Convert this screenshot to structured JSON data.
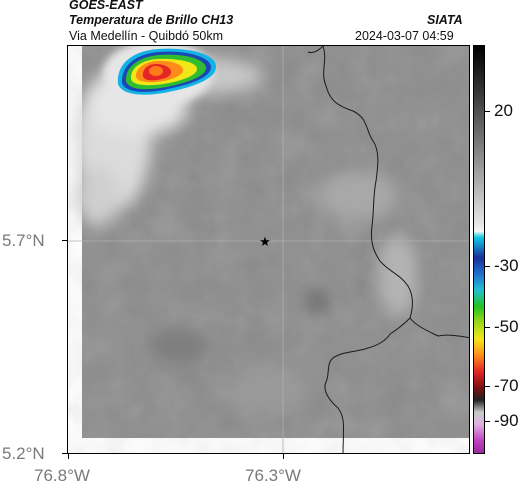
{
  "header": {
    "source": "GOES-EAST",
    "product": "Temperatura de Brillo CH13",
    "region": "Via Medellín - Quibdó 50km",
    "org": "SIATA",
    "datetime": "2024-03-07 04:59"
  },
  "axes": {
    "lat_labels": [
      "5.7°N",
      "5.2°N"
    ],
    "lon_labels": [
      "76.8°W",
      "76.3°W"
    ]
  },
  "marker": {
    "name": "star",
    "lat": 5.7,
    "lon": -76.35
  },
  "colorbar": {
    "labels": [
      "20",
      "-30",
      "-50",
      "-70",
      "-90"
    ],
    "unit_hint": "brightness temperature"
  },
  "colors": {
    "gray_bg": "#8c8c8c",
    "cloud_white": "#e6e6e6",
    "storm_cyan": "#13b3e6",
    "storm_blue": "#1a47b3",
    "storm_green": "#2fbd2f",
    "storm_yellow": "#f2e619",
    "storm_orange": "#ff8c1a",
    "storm_red": "#e62626"
  }
}
